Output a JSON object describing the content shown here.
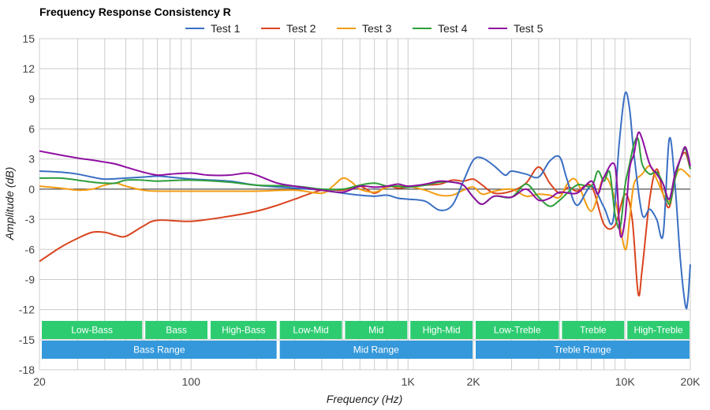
{
  "chart_data": {
    "type": "line",
    "title": "Frequency Response Consistency R",
    "xlabel": "Frequency (Hz)",
    "ylabel": "Amplitude (dB)",
    "x_scale": "log",
    "xlim": [
      20,
      20000
    ],
    "ylim": [
      -18,
      15
    ],
    "x_ticks": [
      {
        "value": 20,
        "label": "20"
      },
      {
        "value": 100,
        "label": "100"
      },
      {
        "value": 1000,
        "label": "1K"
      },
      {
        "value": 2000,
        "label": "2K"
      },
      {
        "value": 10000,
        "label": "10K"
      },
      {
        "value": 20000,
        "label": "20K"
      }
    ],
    "y_ticks": [
      15,
      12,
      9,
      6,
      3,
      0,
      -3,
      -6,
      -9,
      -12,
      -15,
      -18
    ],
    "grid": true,
    "legend_position": "top",
    "series": [
      {
        "name": "Test 1",
        "color": "#3a6fc4",
        "points": [
          [
            20,
            1.8
          ],
          [
            25,
            1.7
          ],
          [
            30,
            1.5
          ],
          [
            35,
            1.2
          ],
          [
            40,
            1.0
          ],
          [
            50,
            1.1
          ],
          [
            60,
            1.2
          ],
          [
            70,
            1.3
          ],
          [
            80,
            1.2
          ],
          [
            100,
            1.0
          ],
          [
            150,
            0.8
          ],
          [
            200,
            0.4
          ],
          [
            300,
            0.1
          ],
          [
            400,
            -0.1
          ],
          [
            500,
            -0.4
          ],
          [
            600,
            -0.6
          ],
          [
            700,
            -0.7
          ],
          [
            800,
            -0.6
          ],
          [
            900,
            -0.9
          ],
          [
            1000,
            -1.0
          ],
          [
            1200,
            -1.2
          ],
          [
            1400,
            -2.1
          ],
          [
            1600,
            -1.6
          ],
          [
            1800,
            0.8
          ],
          [
            2000,
            2.9
          ],
          [
            2200,
            3.1
          ],
          [
            2500,
            2.3
          ],
          [
            2800,
            1.4
          ],
          [
            3000,
            1.8
          ],
          [
            3500,
            1.5
          ],
          [
            4000,
            1.2
          ],
          [
            4500,
            2.8
          ],
          [
            5000,
            3.2
          ],
          [
            5400,
            1.0
          ],
          [
            6000,
            -1.6
          ],
          [
            7000,
            0.3
          ],
          [
            8000,
            -1.8
          ],
          [
            8800,
            -3.2
          ],
          [
            9400,
            4.5
          ],
          [
            10000,
            9.5
          ],
          [
            10500,
            8.0
          ],
          [
            11000,
            3.5
          ],
          [
            12000,
            -2.5
          ],
          [
            13000,
            -2.0
          ],
          [
            14000,
            -3.0
          ],
          [
            15000,
            -4.5
          ],
          [
            16000,
            5.0
          ],
          [
            17000,
            0.5
          ],
          [
            18000,
            -7.0
          ],
          [
            19000,
            -11.6
          ],
          [
            19500,
            -11.0
          ],
          [
            20000,
            -7.5
          ]
        ]
      },
      {
        "name": "Test 2",
        "color": "#d9441e",
        "points": [
          [
            20,
            -7.2
          ],
          [
            25,
            -5.8
          ],
          [
            30,
            -4.9
          ],
          [
            35,
            -4.3
          ],
          [
            40,
            -4.3
          ],
          [
            45,
            -4.6
          ],
          [
            50,
            -4.7
          ],
          [
            60,
            -3.7
          ],
          [
            70,
            -3.1
          ],
          [
            100,
            -3.2
          ],
          [
            150,
            -2.7
          ],
          [
            200,
            -2.2
          ],
          [
            250,
            -1.6
          ],
          [
            300,
            -1.0
          ],
          [
            400,
            -0.1
          ],
          [
            500,
            -0.1
          ],
          [
            600,
            0.3
          ],
          [
            700,
            -0.4
          ],
          [
            800,
            0.3
          ],
          [
            900,
            0.1
          ],
          [
            1000,
            0.2
          ],
          [
            1200,
            0.4
          ],
          [
            1400,
            0.5
          ],
          [
            1600,
            0.9
          ],
          [
            1800,
            0.8
          ],
          [
            2000,
            1.0
          ],
          [
            2200,
            0.4
          ],
          [
            2500,
            -0.4
          ],
          [
            3000,
            -0.2
          ],
          [
            3500,
            0.6
          ],
          [
            4000,
            2.2
          ],
          [
            4500,
            0.6
          ],
          [
            5000,
            -0.4
          ],
          [
            5500,
            0.2
          ],
          [
            6000,
            -0.2
          ],
          [
            7000,
            0.3
          ],
          [
            8000,
            -3.5
          ],
          [
            9000,
            -3.6
          ],
          [
            10000,
            -0.5
          ],
          [
            10800,
            -3.0
          ],
          [
            11500,
            -10.4
          ],
          [
            12000,
            -8.0
          ],
          [
            13000,
            -1.0
          ],
          [
            14000,
            2.0
          ],
          [
            15000,
            -0.5
          ],
          [
            16000,
            -1.8
          ],
          [
            17000,
            1.0
          ],
          [
            18000,
            3.0
          ],
          [
            19000,
            3.6
          ],
          [
            20000,
            2.0
          ]
        ]
      },
      {
        "name": "Test 3",
        "color": "#f39c12",
        "points": [
          [
            20,
            0.3
          ],
          [
            25,
            0.1
          ],
          [
            30,
            -0.1
          ],
          [
            35,
            0.0
          ],
          [
            40,
            0.4
          ],
          [
            45,
            0.6
          ],
          [
            50,
            0.3
          ],
          [
            60,
            -0.1
          ],
          [
            70,
            -0.2
          ],
          [
            100,
            -0.2
          ],
          [
            150,
            -0.2
          ],
          [
            200,
            -0.2
          ],
          [
            300,
            -0.1
          ],
          [
            400,
            -0.4
          ],
          [
            450,
            0.3
          ],
          [
            500,
            1.1
          ],
          [
            550,
            0.7
          ],
          [
            600,
            0.0
          ],
          [
            700,
            -0.3
          ],
          [
            800,
            0.2
          ],
          [
            900,
            0.3
          ],
          [
            1000,
            0.3
          ],
          [
            1200,
            -0.1
          ],
          [
            1400,
            -0.6
          ],
          [
            1600,
            -0.6
          ],
          [
            1800,
            -0.1
          ],
          [
            2000,
            0.2
          ],
          [
            2200,
            -0.5
          ],
          [
            2500,
            -0.2
          ],
          [
            3000,
            0.0
          ],
          [
            3500,
            -0.7
          ],
          [
            4000,
            -0.5
          ],
          [
            4500,
            -0.6
          ],
          [
            5000,
            -0.8
          ],
          [
            5500,
            0.7
          ],
          [
            6000,
            0.8
          ],
          [
            7000,
            -2.2
          ],
          [
            8000,
            1.2
          ],
          [
            9000,
            -1.0
          ],
          [
            10000,
            -6.0
          ],
          [
            10500,
            -3.0
          ],
          [
            11000,
            0.5
          ],
          [
            12000,
            1.5
          ],
          [
            13000,
            2.3
          ],
          [
            14000,
            1.0
          ],
          [
            15000,
            -0.5
          ],
          [
            16000,
            -1.2
          ],
          [
            17000,
            1.0
          ],
          [
            18000,
            2.0
          ],
          [
            20000,
            1.2
          ]
        ]
      },
      {
        "name": "Test 4",
        "color": "#2e9e3a",
        "points": [
          [
            20,
            1.1
          ],
          [
            25,
            1.1
          ],
          [
            30,
            0.9
          ],
          [
            35,
            0.7
          ],
          [
            40,
            0.6
          ],
          [
            45,
            0.6
          ],
          [
            50,
            0.9
          ],
          [
            60,
            0.9
          ],
          [
            70,
            0.8
          ],
          [
            100,
            0.9
          ],
          [
            150,
            0.7
          ],
          [
            200,
            0.4
          ],
          [
            300,
            0.3
          ],
          [
            400,
            0.0
          ],
          [
            500,
            0.0
          ],
          [
            600,
            0.4
          ],
          [
            700,
            0.6
          ],
          [
            800,
            0.3
          ],
          [
            900,
            0.3
          ],
          [
            1000,
            0.2
          ],
          [
            1200,
            0.4
          ],
          [
            1400,
            0.7
          ],
          [
            1600,
            0.7
          ],
          [
            1800,
            0.4
          ],
          [
            2000,
            -0.8
          ],
          [
            2200,
            -1.5
          ],
          [
            2500,
            -0.7
          ],
          [
            3000,
            -0.8
          ],
          [
            3500,
            0.5
          ],
          [
            4000,
            -0.8
          ],
          [
            4500,
            -1.7
          ],
          [
            5000,
            -1.1
          ],
          [
            6000,
            0.4
          ],
          [
            7000,
            0.3
          ],
          [
            7500,
            1.8
          ],
          [
            8000,
            0.8
          ],
          [
            8500,
            1.7
          ],
          [
            9000,
            -2.5
          ],
          [
            9500,
            -3.8
          ],
          [
            10000,
            0.3
          ],
          [
            10500,
            2.5
          ],
          [
            11000,
            4.5
          ],
          [
            11500,
            5.0
          ],
          [
            12000,
            2.5
          ],
          [
            13000,
            1.5
          ],
          [
            14000,
            1.7
          ],
          [
            15000,
            0.5
          ],
          [
            16000,
            -1.5
          ],
          [
            17000,
            1.0
          ],
          [
            18000,
            3.0
          ],
          [
            19000,
            4.0
          ],
          [
            20000,
            2.0
          ]
        ]
      },
      {
        "name": "Test 5",
        "color": "#8e0fa0",
        "points": [
          [
            20,
            3.8
          ],
          [
            25,
            3.4
          ],
          [
            30,
            3.1
          ],
          [
            35,
            2.9
          ],
          [
            40,
            2.7
          ],
          [
            45,
            2.5
          ],
          [
            50,
            2.2
          ],
          [
            60,
            1.7
          ],
          [
            70,
            1.4
          ],
          [
            80,
            1.5
          ],
          [
            100,
            1.6
          ],
          [
            120,
            1.4
          ],
          [
            150,
            1.4
          ],
          [
            180,
            1.6
          ],
          [
            200,
            1.4
          ],
          [
            250,
            0.6
          ],
          [
            300,
            0.3
          ],
          [
            400,
            -0.1
          ],
          [
            500,
            -0.3
          ],
          [
            600,
            0.3
          ],
          [
            700,
            0.2
          ],
          [
            800,
            0.3
          ],
          [
            900,
            0.5
          ],
          [
            1000,
            0.3
          ],
          [
            1200,
            0.5
          ],
          [
            1400,
            0.8
          ],
          [
            1600,
            0.7
          ],
          [
            1800,
            0.4
          ],
          [
            2000,
            -0.8
          ],
          [
            2200,
            -1.5
          ],
          [
            2500,
            -0.7
          ],
          [
            3000,
            -0.8
          ],
          [
            3500,
            0.0
          ],
          [
            4000,
            -1.1
          ],
          [
            4500,
            -0.9
          ],
          [
            5000,
            -0.3
          ],
          [
            6000,
            -0.4
          ],
          [
            7000,
            0.8
          ],
          [
            7500,
            -0.5
          ],
          [
            8000,
            1.2
          ],
          [
            9000,
            2.3
          ],
          [
            9500,
            -4.5
          ],
          [
            10000,
            -3.0
          ],
          [
            10500,
            2.0
          ],
          [
            11000,
            3.5
          ],
          [
            11500,
            5.6
          ],
          [
            12000,
            5.0
          ],
          [
            13000,
            2.5
          ],
          [
            14000,
            1.5
          ],
          [
            15000,
            0.5
          ],
          [
            16000,
            -1.0
          ],
          [
            17000,
            1.5
          ],
          [
            18000,
            3.0
          ],
          [
            19000,
            4.2
          ],
          [
            20000,
            2.3
          ]
        ]
      }
    ],
    "bands_row1": [
      {
        "label": "Low-Bass",
        "from": 20,
        "to": 60
      },
      {
        "label": "Bass",
        "from": 60,
        "to": 120
      },
      {
        "label": "High-Bass",
        "from": 120,
        "to": 250
      },
      {
        "label": "Low-Mid",
        "from": 250,
        "to": 500
      },
      {
        "label": "Mid",
        "from": 500,
        "to": 1000
      },
      {
        "label": "High-Mid",
        "from": 1000,
        "to": 2000
      },
      {
        "label": "Low-Treble",
        "from": 2000,
        "to": 5000
      },
      {
        "label": "Treble",
        "from": 5000,
        "to": 10000
      },
      {
        "label": "High-Treble",
        "from": 10000,
        "to": 20000
      }
    ],
    "bands_row2": [
      {
        "label": "Bass Range",
        "from": 20,
        "to": 250
      },
      {
        "label": "Mid Range",
        "from": 250,
        "to": 2000
      },
      {
        "label": "Treble Range",
        "from": 2000,
        "to": 20000
      }
    ],
    "band_colors": {
      "row1": "#2ecc71",
      "row2": "#3498db"
    }
  }
}
